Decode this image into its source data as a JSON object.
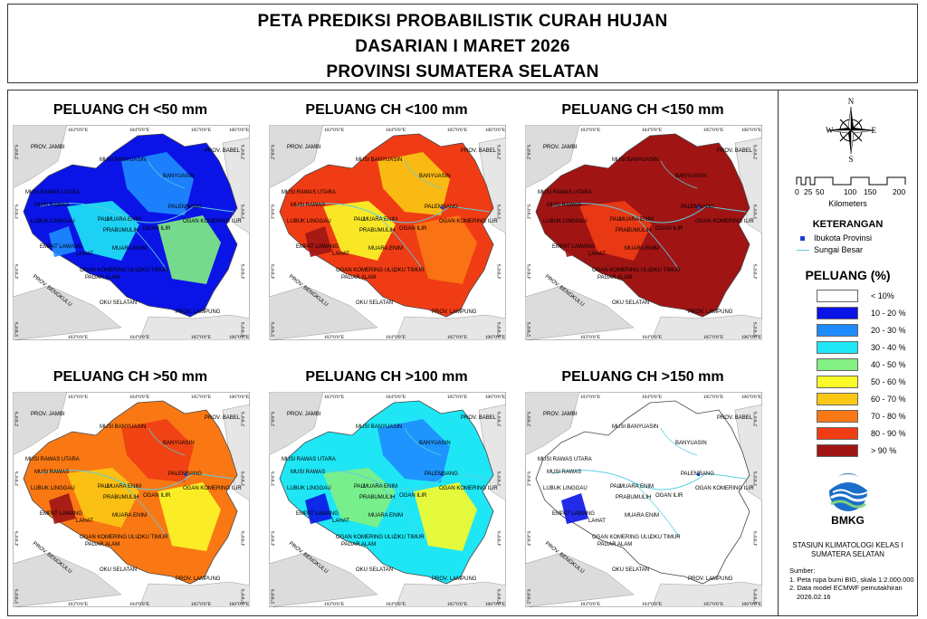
{
  "title": {
    "line1": "PETA PREDIKSI PROBABILISTIK CURAH HUJAN",
    "line2": "DASARIAN I MARET 2026",
    "line3": "PROVINSI SUMATERA SELATAN"
  },
  "axis_labels": {
    "lon": [
      "103°0'0\"E",
      "104°0'0\"E",
      "105°0'0\"E",
      "106°0'0\"E"
    ],
    "lat": [
      "2°0'0\"S",
      "3°0'0\"S",
      "4°0'0\"S",
      "5°0'0\"S"
    ]
  },
  "places": {
    "jambi": "PROV. JAMBI",
    "babel": "PROV. BABEL",
    "bengkulu": "PROV. BENGKULU",
    "lampung": "PROV. LAMPUNG",
    "musi_banyuasin": "MUSI BANYUASIN",
    "banyuasin": "BANYUASIN",
    "musi_rawas_utara": "MUSI RAWAS UTARA",
    "musi_rawas": "MUSI RAWAS",
    "palembang": "PALEMBANG",
    "lubuk_linggau": "LUBUK LINGGAU",
    "pali": "PALI",
    "muara_enim_top": "MUARA ENIM",
    "prabumulih": "PRABUMULIH",
    "ogan_ilir": "OGAN ILIR",
    "ogan_komering_ilir": "OGAN KOMERING ILIR",
    "empat_lawang": "EMPAT LAWANG",
    "lahat": "LAHAT",
    "muara_enim": "MUARA ENIM",
    "ogan_komering_ulu": "OGAN KOMERING ULU",
    "oku_timur": "OKU TIMUR",
    "pagar_alam": "PAGAR ALAM",
    "oku_selatan": "OKU SELATAN"
  },
  "panels": [
    {
      "title": "PELUANG CH <50 mm",
      "id": "lt50"
    },
    {
      "title": "PELUANG CH <100 mm",
      "id": "lt100"
    },
    {
      "title": "PELUANG CH <150 mm",
      "id": "lt150"
    },
    {
      "title": "PELUANG CH >50 mm",
      "id": "gt50"
    },
    {
      "title": "PELUANG CH >100 mm",
      "id": "gt100"
    },
    {
      "title": "PELUANG CH >150 mm",
      "id": "gt150"
    }
  ],
  "compass": {
    "n": "N",
    "s": "S",
    "e": "E",
    "w": "W"
  },
  "scale": {
    "ticks": [
      "0",
      "25",
      "50",
      "100",
      "150",
      "200"
    ],
    "unit": "Kilometers"
  },
  "legend": {
    "title": "KETERANGAN",
    "capital": "Ibukota Provinsi",
    "river": "Sungai Besar",
    "prob_title": "PELUANG (%)",
    "classes": [
      {
        "label": "< 10%",
        "color": "#ffffff"
      },
      {
        "label": "10 - 20 %",
        "color": "#0a14e6"
      },
      {
        "label": "20 - 30 %",
        "color": "#1e8cff"
      },
      {
        "label": "30 - 40 %",
        "color": "#1ee6f5"
      },
      {
        "label": "40 - 50 %",
        "color": "#82f082"
      },
      {
        "label": "50 - 60 %",
        "color": "#fafa28"
      },
      {
        "label": "60 - 70 %",
        "color": "#fac814"
      },
      {
        "label": "70 - 80 %",
        "color": "#fa7814"
      },
      {
        "label": "80 - 90 %",
        "color": "#f03c14"
      },
      {
        "label": "> 90 %",
        "color": "#a01414"
      }
    ]
  },
  "logo_text": "BMKG",
  "station": {
    "line1": "STASIUN KLIMATOLOGI KELAS I",
    "line2": "SUMATERA SELATAN"
  },
  "source": {
    "title": "Sumber:",
    "item1": "1. Peta rupa bumi BIG, skala 1:2.000.000",
    "item2": "2. Data model ECMWF pemutakhiran",
    "item3": "2026.02.16"
  }
}
